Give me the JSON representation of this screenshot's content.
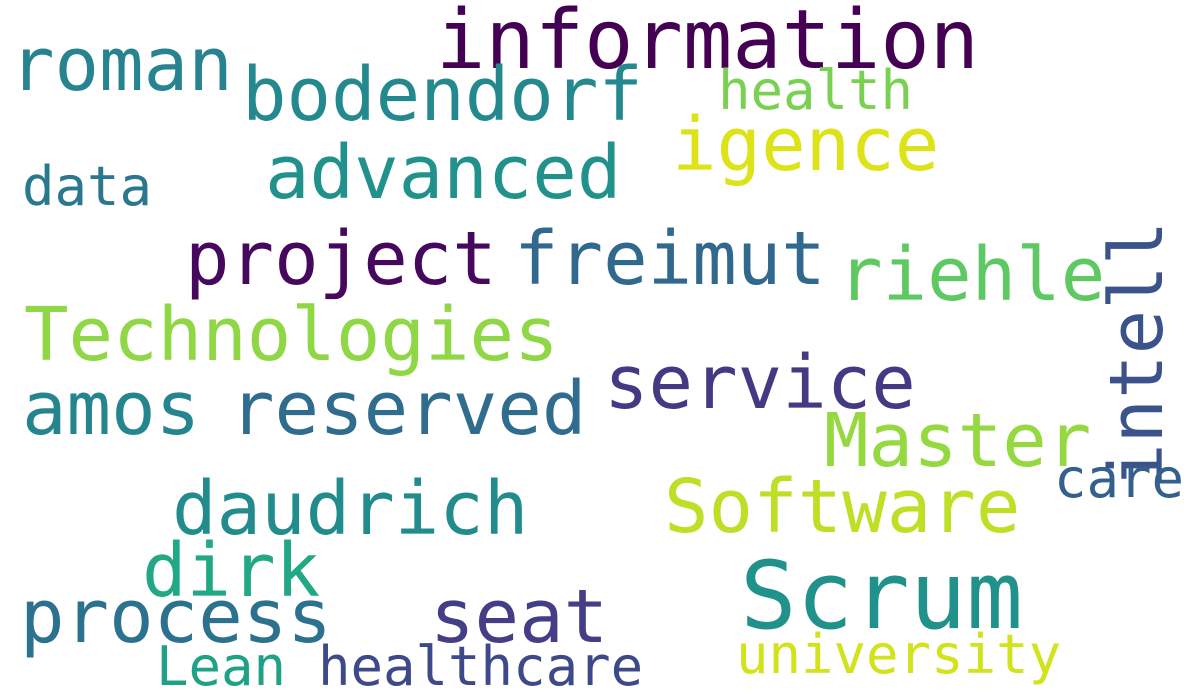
{
  "words": [
    {
      "text": "information",
      "color": "#440154"
    },
    {
      "text": "roman",
      "color": "#26838f"
    },
    {
      "text": "bodendorf",
      "color": "#23898e"
    },
    {
      "text": "health",
      "color": "#7ad151"
    },
    {
      "text": "igence",
      "color": "#dde318"
    },
    {
      "text": "advanced",
      "color": "#21918c"
    },
    {
      "text": "data",
      "color": "#2a788e"
    },
    {
      "text": "project",
      "color": "#46085c"
    },
    {
      "text": "freimut",
      "color": "#31688e"
    },
    {
      "text": "riehle",
      "color": "#5ec962"
    },
    {
      "text": "intell",
      "color": "#3b528b"
    },
    {
      "text": "Technologies",
      "color": "#8fd744"
    },
    {
      "text": "service",
      "color": "#443983"
    },
    {
      "text": "amos",
      "color": "#25858e"
    },
    {
      "text": "reserved",
      "color": "#2f6c8e"
    },
    {
      "text": "Master",
      "color": "#95d840"
    },
    {
      "text": "care",
      "color": "#35608d"
    },
    {
      "text": "daudrich",
      "color": "#228c8d"
    },
    {
      "text": "Software",
      "color": "#bddf26"
    },
    {
      "text": "dirk",
      "color": "#22a884"
    },
    {
      "text": "Scrum",
      "color": "#21918c"
    },
    {
      "text": "process",
      "color": "#2c728e"
    },
    {
      "text": "seat",
      "color": "#433e85"
    },
    {
      "text": "Lean",
      "color": "#1fa187"
    },
    {
      "text": "healthcare",
      "color": "#3e4989"
    },
    {
      "text": "university",
      "color": "#d2e21b"
    }
  ]
}
